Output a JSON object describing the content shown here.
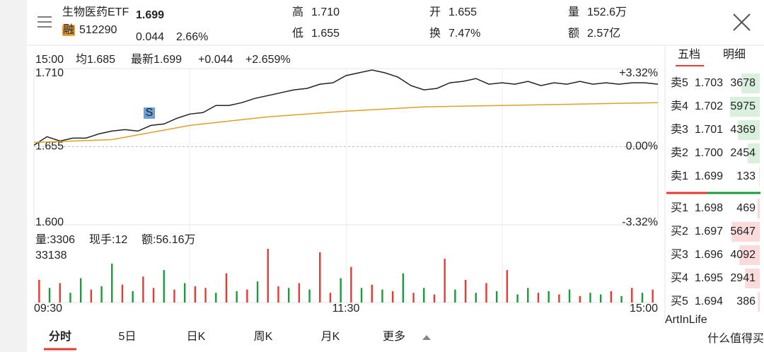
{
  "header": {
    "name": "生物医药ETF",
    "tag": "融",
    "code": "512290",
    "price": "1.699",
    "change": "0.044",
    "change_pct": "2.66%",
    "stats": [
      {
        "label": "高",
        "value": "1.710"
      },
      {
        "label": "低",
        "value": "1.655"
      },
      {
        "label": "开",
        "value": "1.655"
      },
      {
        "label": "换",
        "value": "7.47%"
      },
      {
        "label": "量",
        "value": "152.6万"
      },
      {
        "label": "额",
        "value": "2.57亿"
      }
    ]
  },
  "info": {
    "time": "15:00",
    "avg": "均1.685",
    "latest": "最新1.699",
    "change": "+0.044",
    "change_pct": "+2.659%"
  },
  "signal": "S",
  "chart_data": [
    {
      "type": "line",
      "xlim": [
        0,
        240
      ],
      "ylim": [
        1.6,
        1.71
      ],
      "y2lim": [
        -3.32,
        3.32
      ],
      "xticks": [
        {
          "value": 0,
          "label": "09:30"
        },
        {
          "value": 120,
          "label": "11:30"
        },
        {
          "value": 240,
          "label": "15:00"
        }
      ],
      "yticks": [
        {
          "value": 1.71,
          "label": "1.710"
        },
        {
          "value": 1.655,
          "label": "1.655"
        },
        {
          "value": 1.6,
          "label": "1.600"
        }
      ],
      "y2ticks": [
        {
          "value": 3.32,
          "label": "+3.32%"
        },
        {
          "value": 0,
          "label": "0.00%"
        },
        {
          "value": -3.32,
          "label": "-3.32%"
        }
      ],
      "series": [
        {
          "color": "#222222",
          "x": [
            0,
            5,
            10,
            15,
            20,
            25,
            30,
            35,
            40,
            45,
            50,
            55,
            60,
            65,
            70,
            75,
            80,
            85,
            90,
            95,
            100,
            105,
            110,
            115,
            120,
            125,
            130,
            135,
            140,
            145,
            150,
            155,
            160,
            165,
            170,
            175,
            180,
            185,
            190,
            195,
            200,
            205,
            210,
            215,
            220,
            225,
            230,
            235,
            240
          ],
          "values": [
            1.656,
            1.662,
            1.659,
            1.661,
            1.661,
            1.664,
            1.666,
            1.667,
            1.666,
            1.67,
            1.671,
            1.675,
            1.678,
            1.679,
            1.684,
            1.684,
            1.686,
            1.689,
            1.691,
            1.693,
            1.695,
            1.696,
            1.699,
            1.7,
            1.705,
            1.707,
            1.709,
            1.707,
            1.704,
            1.698,
            1.695,
            1.696,
            1.7,
            1.701,
            1.703,
            1.699,
            1.7,
            1.699,
            1.701,
            1.698,
            1.7,
            1.699,
            1.701,
            1.699,
            1.7,
            1.699,
            1.7,
            1.7,
            1.699
          ]
        },
        {
          "color": "#e0a020",
          "x": [
            0,
            30,
            60,
            90,
            120,
            150,
            180,
            210,
            240
          ],
          "values": [
            1.658,
            1.66,
            1.67,
            1.676,
            1.68,
            1.683,
            1.684,
            1.685,
            1.686
          ]
        }
      ]
    },
    {
      "type": "bar",
      "header": [
        {
          "text": "量:3306"
        },
        {
          "text": "现手:12"
        },
        {
          "text": "额:56.16万"
        }
      ],
      "xlim": [
        0,
        240
      ],
      "ylim": [
        0,
        33138
      ],
      "yticks": [
        33138
      ],
      "x": [
        2,
        6,
        10,
        14,
        18,
        22,
        26,
        30,
        34,
        38,
        42,
        46,
        50,
        54,
        58,
        62,
        66,
        70,
        74,
        78,
        82,
        86,
        90,
        94,
        98,
        102,
        106,
        110,
        114,
        118,
        122,
        126,
        130,
        134,
        138,
        142,
        146,
        150,
        154,
        158,
        162,
        166,
        170,
        174,
        178,
        182,
        186,
        190,
        194,
        198,
        202,
        206,
        210,
        214,
        218,
        222,
        226,
        230,
        234,
        238
      ],
      "values": [
        14000,
        9000,
        12000,
        6000,
        15000,
        8000,
        10000,
        24000,
        11000,
        7000,
        16000,
        9000,
        20000,
        8000,
        12000,
        10000,
        9000,
        6000,
        18000,
        7000,
        8000,
        13000,
        33138,
        10000,
        9000,
        12000,
        8000,
        31000,
        6000,
        15000,
        22000,
        9000,
        11000,
        8000,
        7000,
        18000,
        6000,
        9000,
        5000,
        27000,
        8000,
        14000,
        6000,
        12000,
        7000,
        20000,
        5000,
        9000,
        6000,
        7000,
        5000,
        8000,
        4000,
        6000,
        5000,
        7000,
        4000,
        9000,
        6000,
        8000
      ],
      "colors": [
        "#e8392f",
        "#1a9b3a",
        "#e8392f",
        "#1a9b3a",
        "#1a9b3a",
        "#e8392f",
        "#1a9b3a",
        "#1a9b3a",
        "#e8392f",
        "#1a9b3a",
        "#e8392f",
        "#e8392f",
        "#1a9b3a",
        "#e8392f",
        "#1a9b3a",
        "#e8392f",
        "#e8392f",
        "#1a9b3a",
        "#e8392f",
        "#1a9b3a",
        "#e8392f",
        "#1a9b3a",
        "#e8392f",
        "#e8392f",
        "#1a9b3a",
        "#e8392f",
        "#1a9b3a",
        "#e8392f",
        "#e8392f",
        "#1a9b3a",
        "#e8392f",
        "#1a9b3a",
        "#e8392f",
        "#1a9b3a",
        "#e8392f",
        "#1a9b3a",
        "#e8392f",
        "#1a9b3a",
        "#e8392f",
        "#e8392f",
        "#1a9b3a",
        "#e8392f",
        "#1a9b3a",
        "#e8392f",
        "#1a9b3a",
        "#e8392f",
        "#1a9b3a",
        "#1a9b3a",
        "#e8392f",
        "#1a9b3a",
        "#e8392f",
        "#1a9b3a",
        "#e8392f",
        "#1a9b3a",
        "#1a9b3a",
        "#e8392f",
        "#1a9b3a",
        "#e8392f",
        "#1a9b3a",
        "#e8392f"
      ]
    }
  ],
  "book": {
    "tabs": [
      "五档",
      "明细"
    ],
    "sell": [
      {
        "label": "卖5",
        "price": "1.703",
        "qty": 3678
      },
      {
        "label": "卖4",
        "price": "1.702",
        "qty": 5975
      },
      {
        "label": "卖3",
        "price": "1.701",
        "qty": 4369
      },
      {
        "label": "卖2",
        "price": "1.700",
        "qty": 2454
      },
      {
        "label": "卖1",
        "price": "1.699",
        "qty": 133
      }
    ],
    "buy": [
      {
        "label": "买1",
        "price": "1.698",
        "qty": 469
      },
      {
        "label": "买2",
        "price": "1.697",
        "qty": 5647
      },
      {
        "label": "买3",
        "price": "1.696",
        "qty": 4092
      },
      {
        "label": "买4",
        "price": "1.695",
        "qty": 2941
      },
      {
        "label": "买5",
        "price": "1.694",
        "qty": 386
      }
    ]
  },
  "tabs": [
    "分时",
    "5日",
    "日K",
    "周K",
    "月K",
    "更多"
  ],
  "watermark": [
    "ArtInLife",
    "什么值得买"
  ]
}
